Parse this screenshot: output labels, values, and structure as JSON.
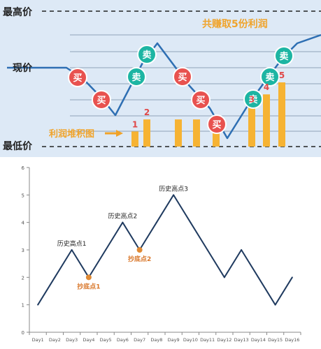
{
  "chart_data": [
    {
      "type": "line",
      "panel": "top",
      "y_markers": {
        "top_label": "最高价",
        "middle_label": "现价",
        "bottom_label": "最低价"
      },
      "headline": "共赚取5份利润",
      "caption": "利润堆积图",
      "bars": [
        {
          "label": "1",
          "level": 0.29
        },
        {
          "label": "2",
          "level": 0.52
        },
        {
          "label": "",
          "level": 0.52
        },
        {
          "label": "",
          "level": 0.52
        },
        {
          "label": "",
          "level": 0.29
        },
        {
          "label": "3",
          "level": 0.77
        },
        {
          "label": "4",
          "level": 1.0
        },
        {
          "label": "5",
          "level": 1.23
        }
      ],
      "markers": [
        {
          "text": "买",
          "kind": "buy"
        },
        {
          "text": "买",
          "kind": "buy"
        },
        {
          "text": "卖",
          "kind": "sell"
        },
        {
          "text": "卖",
          "kind": "sell"
        },
        {
          "text": "买",
          "kind": "buy"
        },
        {
          "text": "买",
          "kind": "buy"
        },
        {
          "text": "买",
          "kind": "buy"
        },
        {
          "text": "卖",
          "kind": "sell"
        },
        {
          "text": "卖",
          "kind": "sell"
        },
        {
          "text": "卖",
          "kind": "sell"
        }
      ],
      "colors": {
        "background": "#dde9f6",
        "line": "#2e6fb3",
        "bar": "#f6b333",
        "buy": "#e8524f",
        "sell": "#1db5a3",
        "label": "#e04848",
        "headline": "#f0a32a",
        "dashed": "#222222",
        "grid": "#8fa3b8"
      }
    },
    {
      "type": "line",
      "panel": "bottom",
      "categories": [
        "Day1",
        "Day2",
        "Day3",
        "Day4",
        "Day5",
        "Day6",
        "Day7",
        "Day8",
        "Day9",
        "Day10",
        "Day11",
        "Day12",
        "Day13",
        "Day14",
        "Day15",
        "Day16"
      ],
      "values": [
        1,
        2,
        3,
        2,
        3,
        4,
        3,
        4,
        5,
        4,
        3,
        2,
        3,
        2,
        1,
        2
      ],
      "ylim": [
        0,
        6
      ],
      "yticks": [
        0,
        1,
        2,
        3,
        4,
        5,
        6
      ],
      "grid": false,
      "annotations": [
        {
          "text": "历史高点1",
          "day": "Day3",
          "value": 3,
          "kind": "high"
        },
        {
          "text": "抄底点1",
          "day": "Day4",
          "value": 2,
          "kind": "low"
        },
        {
          "text": "历史高点2",
          "day": "Day6",
          "value": 4,
          "kind": "high"
        },
        {
          "text": "抄底点2",
          "day": "Day7",
          "value": 3,
          "kind": "low"
        },
        {
          "text": "历史高点3",
          "day": "Day9",
          "value": 5,
          "kind": "high"
        }
      ],
      "colors": {
        "line": "#1f3a5f",
        "low_point": "#e08a34",
        "low_text": "#d9772a",
        "axis": "#888888"
      }
    }
  ]
}
